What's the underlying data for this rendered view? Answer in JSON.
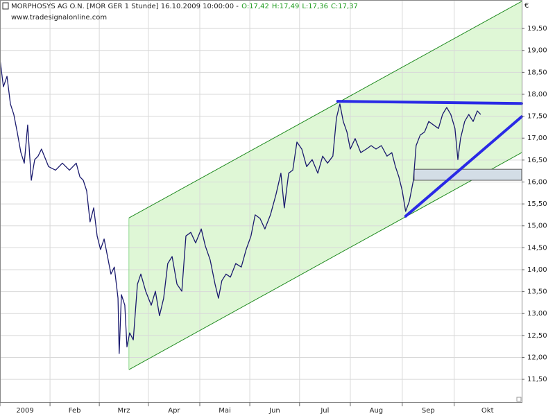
{
  "header": {
    "title": "MORPHOSYS AG O.N. [MOR GER  1 Stunde] 16.10.2009 10:00:00 -",
    "open": "O:17,42",
    "high": "H:17,49",
    "low": "L:17,36",
    "close": "C:17,37",
    "source": "www.tradesignalonline.com"
  },
  "chart_data": {
    "type": "line",
    "currency": "€",
    "xlim": [
      0,
      214.9
    ],
    "ylim": [
      10.98,
      20.15
    ],
    "xticks": [
      {
        "value": 0,
        "label": "2009"
      },
      {
        "value": 20.6,
        "label": "Feb"
      },
      {
        "value": 40.9,
        "label": "Mrz"
      },
      {
        "value": 61.1,
        "label": "Apr"
      },
      {
        "value": 82.3,
        "label": "Mai"
      },
      {
        "value": 102.9,
        "label": "Jun"
      },
      {
        "value": 123.4,
        "label": "Jul"
      },
      {
        "value": 144.3,
        "label": "Aug"
      },
      {
        "value": 165.7,
        "label": "Sep"
      },
      {
        "value": 187.1,
        "label": "Okt"
      }
    ],
    "yticks": [
      {
        "value": 11.5,
        "label": "11,50"
      },
      {
        "value": 12,
        "label": "12,00"
      },
      {
        "value": 12.5,
        "label": "12,50"
      },
      {
        "value": 13,
        "label": "13,00"
      },
      {
        "value": 13.5,
        "label": "13,50"
      },
      {
        "value": 14,
        "label": "14,00"
      },
      {
        "value": 14.5,
        "label": "14,50"
      },
      {
        "value": 15,
        "label": "15,00"
      },
      {
        "value": 15.5,
        "label": "15,50"
      },
      {
        "value": 16,
        "label": "16,00"
      },
      {
        "value": 16.5,
        "label": "16,50"
      },
      {
        "value": 17,
        "label": "17,00"
      },
      {
        "value": 17.5,
        "label": "17,50"
      },
      {
        "value": 18,
        "label": "18,00"
      },
      {
        "value": 18.5,
        "label": "18,50"
      },
      {
        "value": 19,
        "label": "19,00"
      },
      {
        "value": 19.5,
        "label": "19,50"
      }
    ],
    "grid": true,
    "series": [
      {
        "color": "#1a1a6e",
        "x": [
          0,
          1.4,
          2.9,
          4.3,
          5.7,
          7.1,
          8.6,
          10,
          11.4,
          12.9,
          14.3,
          15.7,
          17.1,
          20,
          22.9,
          25.7,
          28.6,
          31.4,
          32.9,
          34.3,
          35.7,
          37.1,
          38.6,
          40,
          41.4,
          42.9,
          44.3,
          45.7,
          47.1,
          48.6,
          49.1,
          50,
          51.4,
          52.3,
          53.4,
          54.9,
          56.6,
          58,
          60,
          62.3,
          64,
          65.7,
          67.4,
          69.1,
          70.9,
          72.9,
          74.9,
          76.6,
          78.6,
          80.6,
          82.9,
          84.6,
          86.6,
          88.6,
          90,
          91.4,
          93.1,
          94.9,
          97.1,
          99.4,
          101.4,
          103.4,
          105.1,
          107.1,
          109.1,
          111.4,
          113.7,
          115.7,
          117.1,
          118.9,
          120.6,
          122.3,
          124.3,
          126.3,
          128.6,
          130.9,
          132.9,
          134.9,
          137.1,
          138.6,
          140,
          141.4,
          142.9,
          144.3,
          146.3,
          148.6,
          150.9,
          152.9,
          154.9,
          157.1,
          159.4,
          161.4,
          162.9,
          164.3,
          165.7,
          167.1,
          168.6,
          170.3,
          171.4,
          173.1,
          174.9,
          176.6,
          178.6,
          180.6,
          182.3,
          184,
          185.7,
          187.4,
          188.6,
          189.7,
          191.4,
          193.1,
          194.9,
          196.6,
          198
        ],
        "values": [
          18.8,
          18.17,
          18.41,
          17.78,
          17.54,
          17.14,
          16.67,
          16.43,
          17.3,
          16.04,
          16.51,
          16.59,
          16.75,
          16.35,
          16.27,
          16.43,
          16.27,
          16.43,
          16.12,
          16.04,
          15.8,
          15.09,
          15.41,
          14.77,
          14.46,
          14.7,
          14.3,
          13.9,
          14.06,
          13.35,
          12.09,
          13.43,
          13.19,
          12.24,
          12.56,
          12.4,
          13.67,
          13.9,
          13.51,
          13.19,
          13.51,
          12.95,
          13.35,
          14.14,
          14.3,
          13.67,
          13.51,
          14.77,
          14.85,
          14.61,
          14.93,
          14.54,
          14.22,
          13.67,
          13.35,
          13.75,
          13.9,
          13.83,
          14.14,
          14.06,
          14.46,
          14.77,
          15.25,
          15.17,
          14.93,
          15.25,
          15.72,
          16.2,
          15.41,
          16.2,
          16.27,
          16.91,
          16.75,
          16.35,
          16.51,
          16.2,
          16.59,
          16.43,
          16.59,
          17.46,
          17.78,
          17.38,
          17.14,
          16.75,
          16.99,
          16.67,
          16.75,
          16.83,
          16.75,
          16.83,
          16.59,
          16.67,
          16.35,
          16.12,
          15.8,
          15.33,
          15.56,
          16.04,
          16.83,
          17.07,
          17.14,
          17.38,
          17.3,
          17.22,
          17.54,
          17.7,
          17.54,
          17.22,
          16.51,
          16.99,
          17.38,
          17.54,
          17.38,
          17.62,
          17.54
        ]
      }
    ],
    "channel": {
      "x": [
        53.1,
        214.9
      ],
      "upper": [
        15.18,
        20.12
      ],
      "lower": [
        11.72,
        16.67
      ]
    },
    "lines": [
      {
        "x": [
          139.1,
          214.9
        ],
        "y": [
          17.84,
          17.79
        ]
      },
      {
        "x": [
          167.1,
          214.9
        ],
        "y": [
          15.22,
          17.49
        ]
      }
    ],
    "box": {
      "x": [
        170.6,
        214.9
      ],
      "y": [
        16.04,
        16.29
      ]
    }
  }
}
